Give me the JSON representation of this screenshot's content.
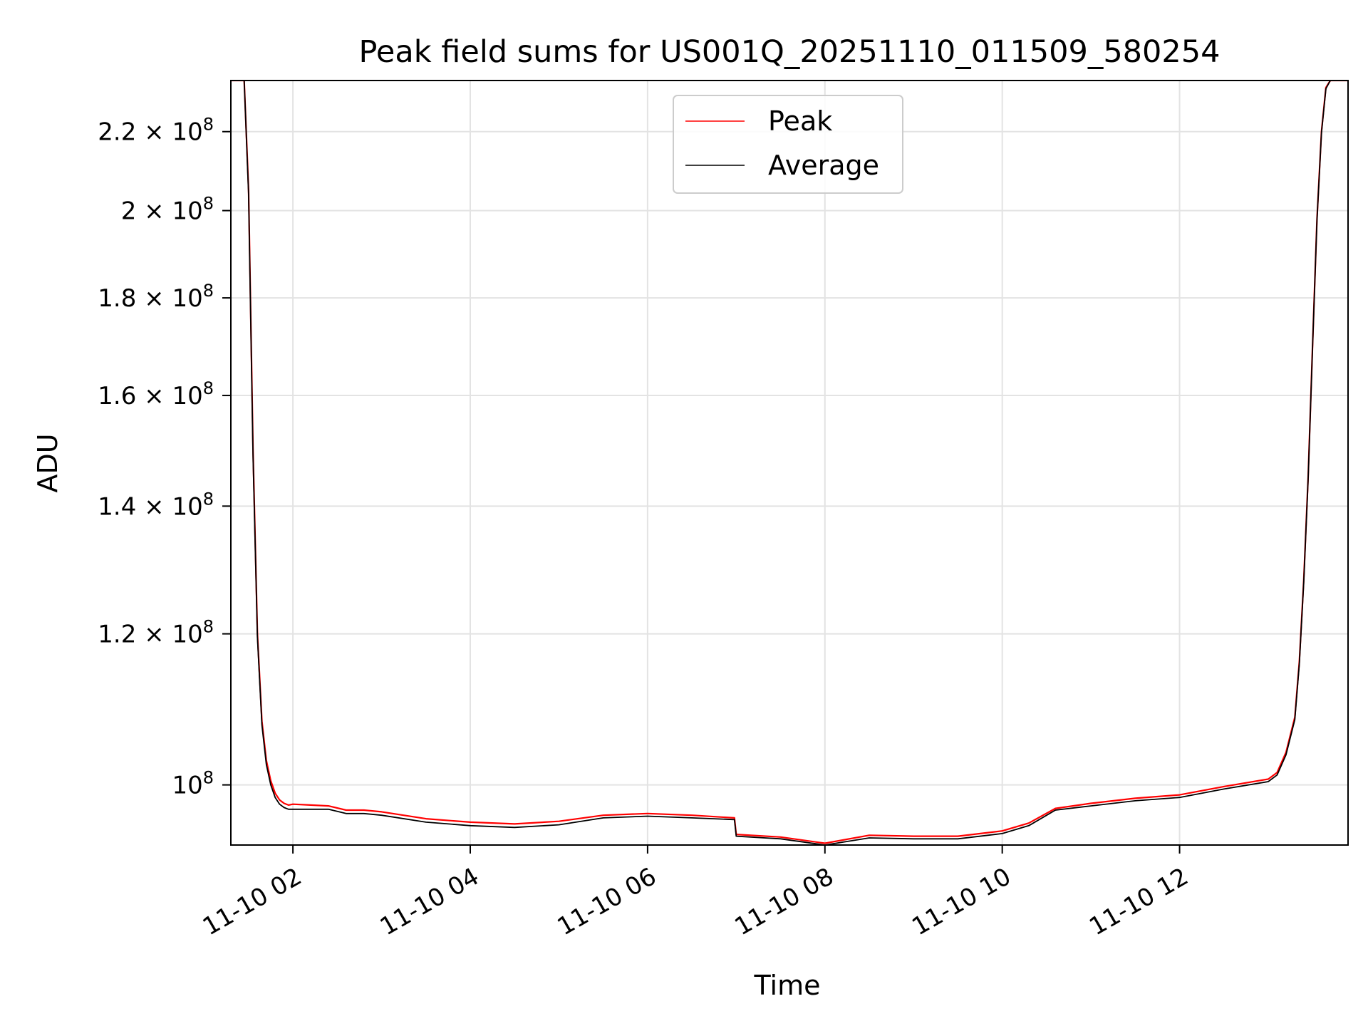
{
  "chart_data": {
    "type": "line",
    "title": "Peak field sums for US001Q_20251110_011509_580254",
    "xlabel": "Time",
    "ylabel": "ADU",
    "x_unit": "hours (2025-11-10)",
    "xlim": [
      1.3,
      13.9
    ],
    "ylim": [
      93000000,
      234000000
    ],
    "y_scale": "log",
    "grid": true,
    "legend_position": "upper-center",
    "x_ticks": [
      {
        "value": 2,
        "label": "11-10 02"
      },
      {
        "value": 4,
        "label": "11-10 04"
      },
      {
        "value": 6,
        "label": "11-10 06"
      },
      {
        "value": 8,
        "label": "11-10 08"
      },
      {
        "value": 10,
        "label": "11-10 10"
      },
      {
        "value": 12,
        "label": "11-10 12"
      }
    ],
    "y_ticks": [
      {
        "value": 100000000,
        "mantissa": "",
        "exponent": "8",
        "base": "10"
      },
      {
        "value": 120000000,
        "mantissa": "1.2",
        "exponent": "8",
        "base": "10"
      },
      {
        "value": 140000000,
        "mantissa": "1.4",
        "exponent": "8",
        "base": "10"
      },
      {
        "value": 160000000,
        "mantissa": "1.6",
        "exponent": "8",
        "base": "10"
      },
      {
        "value": 180000000,
        "mantissa": "1.8",
        "exponent": "8",
        "base": "10"
      },
      {
        "value": 200000000,
        "mantissa": "2",
        "exponent": "8",
        "base": "10"
      },
      {
        "value": 220000000,
        "mantissa": "2.2",
        "exponent": "8",
        "base": "10"
      }
    ],
    "series": [
      {
        "name": "Peak",
        "color": "#ff0000",
        "x": [
          1.3,
          1.45,
          1.5,
          1.55,
          1.6,
          1.65,
          1.7,
          1.75,
          1.8,
          1.85,
          1.9,
          1.95,
          2.0,
          2.2,
          2.4,
          2.6,
          2.8,
          3.0,
          3.5,
          4.0,
          4.5,
          5.0,
          5.5,
          6.0,
          6.5,
          6.98,
          7.0,
          7.5,
          8.0,
          8.5,
          9.0,
          9.5,
          10.0,
          10.3,
          10.6,
          11.0,
          11.5,
          12.0,
          12.5,
          13.0,
          13.1,
          13.2,
          13.3,
          13.35,
          13.4,
          13.45,
          13.5,
          13.55,
          13.6,
          13.65,
          13.7,
          13.9
        ],
        "y": [
          234000000,
          234000000,
          205000000,
          150000000,
          120000000,
          108000000,
          103000000,
          100500000,
          99000000,
          98200000,
          97800000,
          97600000,
          97700000,
          97600000,
          97500000,
          97000000,
          97000000,
          96800000,
          96000000,
          95600000,
          95400000,
          95700000,
          96400000,
          96600000,
          96400000,
          96100000,
          94200000,
          93900000,
          93200000,
          94100000,
          94000000,
          94000000,
          94600000,
          95500000,
          97200000,
          97800000,
          98400000,
          98800000,
          99800000,
          100700000,
          101500000,
          104000000,
          108500000,
          116000000,
          128000000,
          145000000,
          170000000,
          198000000,
          220000000,
          232000000,
          234000000,
          234000000
        ]
      },
      {
        "name": "Average",
        "color": "#000000",
        "x": [
          1.3,
          1.45,
          1.5,
          1.55,
          1.6,
          1.65,
          1.7,
          1.75,
          1.8,
          1.85,
          1.9,
          1.95,
          2.0,
          2.2,
          2.4,
          2.6,
          2.8,
          3.0,
          3.5,
          4.0,
          4.5,
          5.0,
          5.5,
          6.0,
          6.5,
          6.98,
          7.0,
          7.5,
          8.0,
          8.5,
          9.0,
          9.5,
          10.0,
          10.3,
          10.6,
          11.0,
          11.5,
          12.0,
          12.5,
          13.0,
          13.1,
          13.2,
          13.3,
          13.35,
          13.4,
          13.45,
          13.5,
          13.55,
          13.6,
          13.65,
          13.7,
          13.9
        ],
        "y": [
          234000000,
          234000000,
          204000000,
          149000000,
          119500000,
          107500000,
          102500000,
          100000000,
          98500000,
          97700000,
          97300000,
          97100000,
          97100000,
          97100000,
          97100000,
          96600000,
          96600000,
          96400000,
          95600000,
          95200000,
          95000000,
          95300000,
          96100000,
          96300000,
          96100000,
          95900000,
          94000000,
          93700000,
          93000000,
          93800000,
          93700000,
          93700000,
          94300000,
          95200000,
          97000000,
          97500000,
          98100000,
          98500000,
          99500000,
          100400000,
          101200000,
          103700000,
          108200000,
          115700000,
          127700000,
          144700000,
          169700000,
          197700000,
          219700000,
          231700000,
          234000000,
          234000000
        ]
      }
    ]
  }
}
